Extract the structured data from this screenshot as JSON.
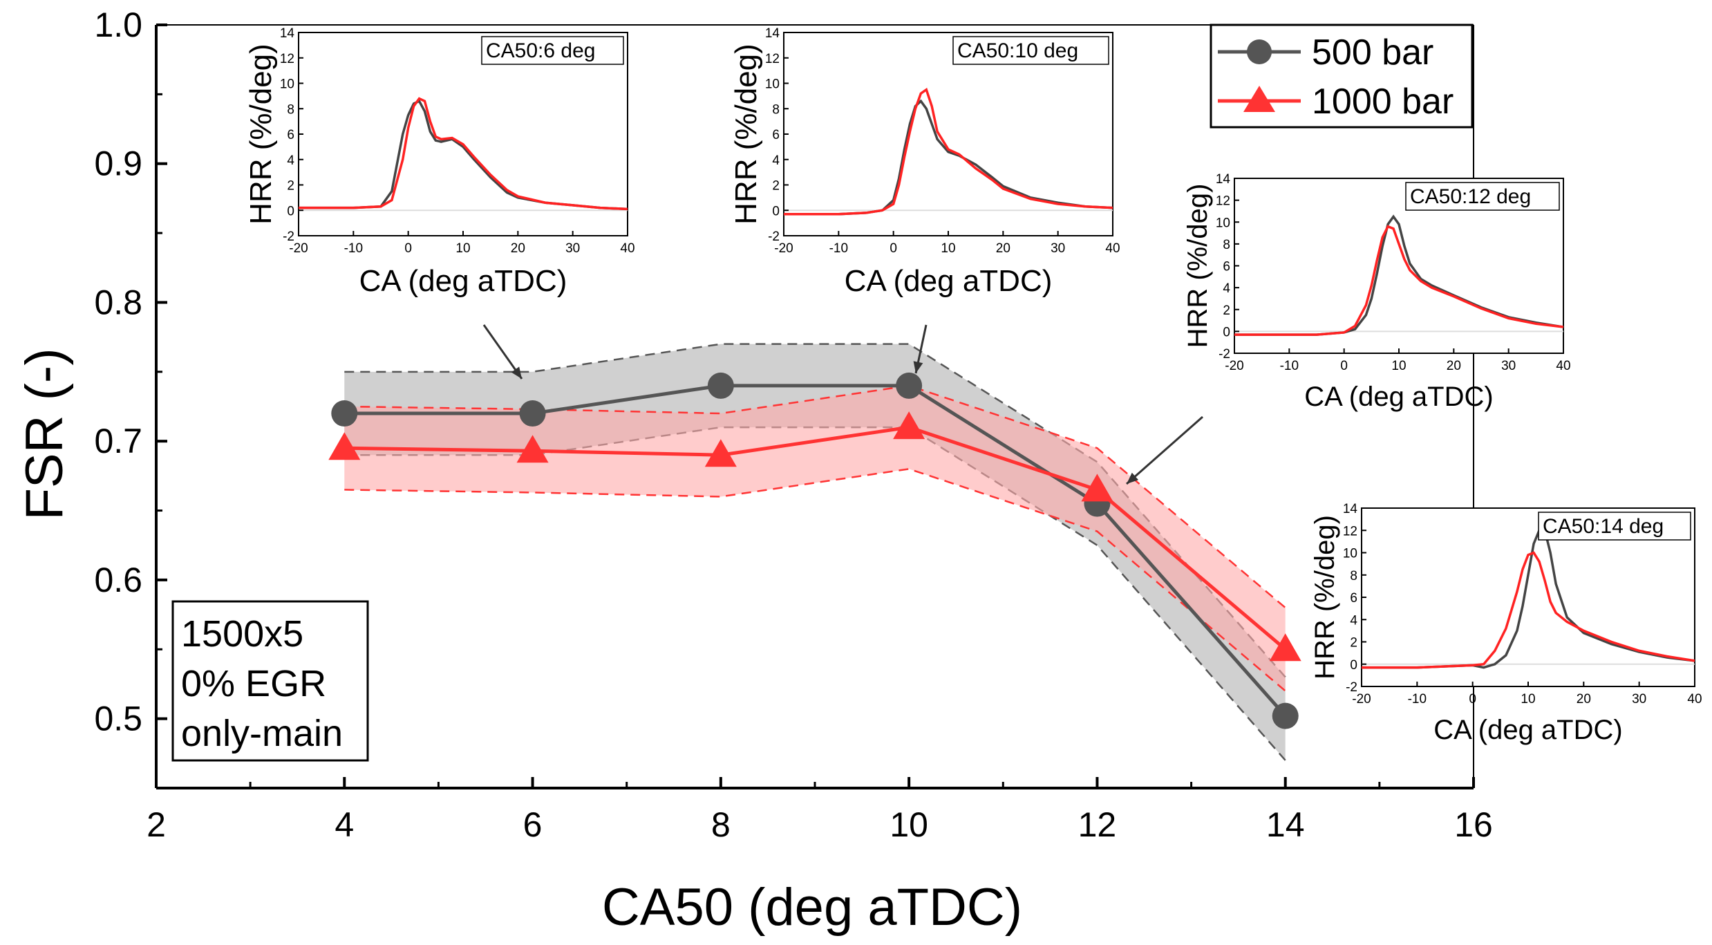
{
  "chart_data": {
    "type": "line",
    "xlabel": "CA50 (deg aTDC)",
    "ylabel": "FSR (-)",
    "xlim": [
      2,
      16
    ],
    "ylim": [
      0.45,
      1.0
    ],
    "x_ticks": [
      "2",
      "4",
      "6",
      "8",
      "10",
      "12",
      "14",
      "16"
    ],
    "y_ticks": [
      "0.5",
      "0.6",
      "0.7",
      "0.8",
      "0.9",
      "1.0"
    ],
    "x": [
      4,
      6,
      8,
      10,
      12,
      14
    ],
    "series": [
      {
        "name": "500 bar",
        "color": "#555555",
        "band_color": "#c8c8c8",
        "marker": "circle",
        "values": [
          0.72,
          0.72,
          0.74,
          0.74,
          0.655,
          0.502
        ],
        "upper": [
          0.75,
          0.75,
          0.77,
          0.77,
          0.685,
          0.53
        ],
        "lower": [
          0.69,
          0.69,
          0.71,
          0.71,
          0.625,
          0.47
        ]
      },
      {
        "name": "1000 bar",
        "color": "#ff3333",
        "band_color": "#ffaaaa",
        "marker": "triangle",
        "values": [
          0.695,
          0.693,
          0.69,
          0.71,
          0.665,
          0.55
        ],
        "upper": [
          0.725,
          0.723,
          0.72,
          0.74,
          0.695,
          0.58
        ],
        "lower": [
          0.665,
          0.663,
          0.66,
          0.68,
          0.635,
          0.52
        ]
      }
    ],
    "annotation": [
      "1500x5",
      "0% EGR",
      "only-main"
    ],
    "legend_position": "top-right",
    "insets": [
      {
        "title": "CA50:6 deg",
        "xlabel": "CA (deg aTDC)",
        "ylabel": "HRR (%/deg)",
        "xlim": [
          -20,
          40
        ],
        "ylim": [
          -2,
          14
        ],
        "x_ticks": [
          "-20",
          "-10",
          "0",
          "10",
          "20",
          "30",
          "40"
        ],
        "y_ticks": [
          "-2",
          "0",
          "2",
          "4",
          "6",
          "8",
          "10",
          "12",
          "14"
        ],
        "ca": [
          -20,
          -10,
          -5,
          -3,
          -1,
          0,
          1,
          2,
          3,
          4,
          5,
          6,
          8,
          10,
          12,
          15,
          18,
          20,
          25,
          30,
          35,
          40
        ],
        "series_500": [
          0.2,
          0.2,
          0.3,
          1.5,
          6.0,
          7.5,
          8.4,
          8.6,
          7.8,
          6.2,
          5.5,
          5.4,
          5.6,
          5.0,
          4.0,
          2.6,
          1.4,
          1.0,
          0.6,
          0.4,
          0.2,
          0.1
        ],
        "series_1000": [
          0.2,
          0.2,
          0.3,
          0.8,
          4.0,
          6.5,
          8.2,
          8.8,
          8.6,
          7.0,
          5.8,
          5.6,
          5.7,
          5.2,
          4.2,
          2.8,
          1.6,
          1.1,
          0.6,
          0.4,
          0.2,
          0.1
        ]
      },
      {
        "title": "CA50:10 deg",
        "xlabel": "CA (deg aTDC)",
        "ylabel": "HRR (%/deg)",
        "xlim": [
          -20,
          40
        ],
        "ylim": [
          -2,
          14
        ],
        "x_ticks": [
          "-20",
          "-10",
          "0",
          "10",
          "20",
          "30",
          "40"
        ],
        "y_ticks": [
          "-2",
          "0",
          "2",
          "4",
          "6",
          "8",
          "10",
          "12",
          "14"
        ],
        "ca": [
          -20,
          -10,
          -5,
          -2,
          0,
          1,
          2,
          3,
          4,
          5,
          6,
          7,
          8,
          10,
          12,
          15,
          18,
          20,
          25,
          30,
          35,
          40
        ],
        "series_500": [
          -0.3,
          -0.3,
          -0.2,
          0.0,
          0.8,
          2.5,
          4.8,
          6.8,
          8.2,
          8.6,
          8.0,
          6.8,
          5.6,
          4.6,
          4.3,
          3.6,
          2.6,
          1.9,
          1.0,
          0.6,
          0.3,
          0.2
        ],
        "series_1000": [
          -0.3,
          -0.3,
          -0.2,
          0.0,
          0.5,
          2.0,
          4.2,
          6.2,
          8.0,
          9.2,
          9.5,
          8.2,
          6.2,
          4.8,
          4.4,
          3.3,
          2.4,
          1.7,
          0.9,
          0.5,
          0.3,
          0.2
        ]
      },
      {
        "title": "CA50:12 deg",
        "xlabel": "CA (deg aTDC)",
        "ylabel": "HRR (%/deg)",
        "xlim": [
          -20,
          40
        ],
        "ylim": [
          -2,
          14
        ],
        "x_ticks": [
          "-20",
          "-10",
          "0",
          "10",
          "20",
          "30",
          "40"
        ],
        "y_ticks": [
          "-2",
          "0",
          "2",
          "4",
          "6",
          "8",
          "10",
          "12",
          "14"
        ],
        "ca": [
          -20,
          -10,
          -5,
          0,
          2,
          4,
          5,
          6,
          7,
          8,
          9,
          10,
          11,
          12,
          14,
          16,
          20,
          25,
          30,
          35,
          40
        ],
        "series_500": [
          -0.3,
          -0.3,
          -0.3,
          -0.1,
          0.2,
          1.5,
          3.0,
          5.3,
          7.8,
          9.8,
          10.5,
          9.8,
          7.8,
          6.2,
          4.8,
          4.2,
          3.3,
          2.2,
          1.3,
          0.8,
          0.4
        ],
        "series_1000": [
          -0.3,
          -0.3,
          -0.3,
          -0.1,
          0.5,
          2.4,
          4.2,
          6.5,
          8.6,
          9.6,
          9.4,
          8.0,
          6.6,
          5.6,
          4.6,
          4.0,
          3.2,
          2.1,
          1.2,
          0.7,
          0.4
        ]
      },
      {
        "title": "CA50:14 deg",
        "xlabel": "CA (deg aTDC)",
        "ylabel": "HRR (%/deg)",
        "xlim": [
          -20,
          40
        ],
        "ylim": [
          -2,
          14
        ],
        "x_ticks": [
          "-20",
          "-10",
          "0",
          "10",
          "20",
          "30",
          "40"
        ],
        "y_ticks": [
          "-2",
          "0",
          "2",
          "4",
          "6",
          "8",
          "10",
          "12",
          "14"
        ],
        "ca": [
          -20,
          -10,
          -5,
          0,
          2,
          4,
          6,
          8,
          9,
          10,
          11,
          12,
          13,
          14,
          15,
          17,
          20,
          25,
          30,
          35,
          40
        ],
        "series_500": [
          -0.3,
          -0.3,
          -0.2,
          -0.1,
          -0.3,
          0.0,
          0.8,
          3.0,
          5.2,
          8.0,
          10.8,
          12.0,
          12.0,
          10.0,
          7.2,
          4.2,
          2.8,
          1.8,
          1.1,
          0.6,
          0.3
        ],
        "series_1000": [
          -0.3,
          -0.3,
          -0.2,
          -0.1,
          0.0,
          1.2,
          3.2,
          6.5,
          8.5,
          9.8,
          10.0,
          9.2,
          7.5,
          5.6,
          4.6,
          3.8,
          3.0,
          2.0,
          1.2,
          0.7,
          0.3
        ]
      }
    ]
  }
}
